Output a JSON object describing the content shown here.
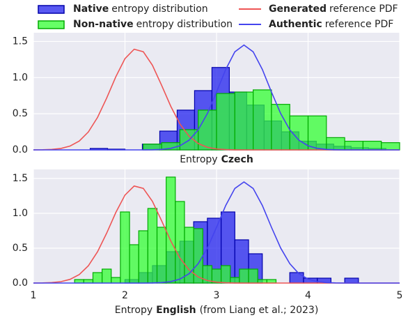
{
  "chart_data": [
    {
      "type": "histogram",
      "legend": [
        {
          "kind": "patch",
          "name": "Native",
          "desc": "entropy distribution",
          "color": "#2222ee",
          "edge": "#0000aa"
        },
        {
          "kind": "line",
          "name": "Generated",
          "desc": "reference PDF",
          "color": "#ee5555"
        },
        {
          "kind": "patch",
          "name": "Non-native",
          "desc": "entropy distribution",
          "color": "#33ff33",
          "edge": "#00aa00"
        },
        {
          "kind": "line",
          "name": "Authentic",
          "desc": "reference PDF",
          "color": "#4444ee"
        }
      ],
      "xlabel": {
        "text": "Entropy",
        "bold": "Czech"
      },
      "xlim": [
        1,
        5
      ],
      "ylim": [
        0,
        1.62
      ],
      "xticks": [
        1,
        2,
        3,
        4,
        5
      ],
      "show_xtick_labels": false,
      "yticks": [
        {
          "value": 0,
          "label": "0.0"
        },
        0.5,
        {
          "value": 1,
          "label": "1.0"
        },
        1.5
      ],
      "grid": true,
      "histograms": [
        {
          "color": "#2222ee",
          "edge": "#0000aa",
          "bins": [
            1.62,
            1.81,
            2.0,
            2.19,
            2.38,
            2.57,
            2.76,
            2.95,
            3.14,
            3.33,
            3.52,
            3.71,
            3.9,
            4.09,
            4.28,
            4.47,
            4.66,
            4.85
          ],
          "counts": [
            0.02,
            0.01,
            0.0,
            0.08,
            0.26,
            0.55,
            0.82,
            1.14,
            0.8,
            0.62,
            0.4,
            0.25,
            0.12,
            0.08,
            0.05,
            0.03,
            0.02
          ]
        },
        {
          "color": "#33ff33",
          "edge": "#00aa00",
          "bins": [
            2.2,
            2.4,
            2.6,
            2.8,
            3.0,
            3.2,
            3.4,
            3.6,
            3.8,
            4.0,
            4.2,
            4.4,
            4.6,
            4.8,
            5.0
          ],
          "counts": [
            0.08,
            0.1,
            0.28,
            0.55,
            0.78,
            0.8,
            0.83,
            0.63,
            0.47,
            0.47,
            0.17,
            0.12,
            0.12,
            0.1
          ]
        }
      ],
      "x": [
        1.0,
        1.1,
        1.2,
        1.3,
        1.4,
        1.5,
        1.6,
        1.7,
        1.8,
        1.9,
        2.0,
        2.1,
        2.2,
        2.3,
        2.4,
        2.5,
        2.6,
        2.7,
        2.8,
        2.9,
        3.0,
        3.1,
        3.2,
        3.3,
        3.4,
        3.5,
        3.6,
        3.7,
        3.8,
        3.9,
        4.0,
        4.1,
        4.2,
        4.3,
        4.4,
        4.5,
        4.6,
        4.7,
        4.8,
        4.9,
        5.0
      ],
      "series": [
        {
          "color": "#ee5555",
          "values": [
            0.001,
            0.002,
            0.007,
            0.02,
            0.053,
            0.122,
            0.248,
            0.449,
            0.716,
            1.011,
            1.262,
            1.392,
            1.358,
            1.172,
            0.894,
            0.603,
            0.359,
            0.189,
            0.088,
            0.036,
            0.013,
            0.004,
            0.001,
            0,
            0,
            0,
            0,
            0,
            0,
            0,
            0,
            0,
            0,
            0,
            0,
            0,
            0,
            0,
            0,
            0,
            0
          ]
        },
        {
          "color": "#4444ee",
          "values": [
            0,
            0,
            0,
            0,
            0,
            0,
            0,
            0,
            0,
            0,
            0,
            0,
            0,
            0.002,
            0.007,
            0.021,
            0.057,
            0.134,
            0.278,
            0.503,
            0.8,
            1.113,
            1.357,
            1.45,
            1.357,
            1.113,
            0.8,
            0.503,
            0.278,
            0.134,
            0.057,
            0.021,
            0.007,
            0.002,
            0,
            0,
            0,
            0,
            0,
            0,
            0
          ]
        }
      ]
    },
    {
      "type": "histogram",
      "xlabel": {
        "text": "Entropy",
        "bold": "English",
        "rest": "(from Liang et al.; 2023)"
      },
      "xlim": [
        1,
        5
      ],
      "ylim": [
        0,
        1.63
      ],
      "xticks": [
        1,
        2,
        3,
        4,
        5
      ],
      "show_xtick_labels": true,
      "yticks": [
        {
          "value": 0,
          "label": "0.0"
        },
        0.5,
        {
          "value": 1,
          "label": "1.0"
        },
        1.5
      ],
      "grid": true,
      "histograms": [
        {
          "color": "#2222ee",
          "edge": "#0000aa",
          "bins": [
            2.0,
            2.15,
            2.3,
            2.45,
            2.6,
            2.75,
            2.9,
            3.05,
            3.2,
            3.35,
            3.5,
            3.65,
            3.8,
            3.95,
            4.1,
            4.25,
            4.4,
            4.55,
            4.7
          ],
          "counts": [
            0.05,
            0.15,
            0.25,
            0.45,
            0.6,
            0.88,
            0.93,
            1.02,
            0.62,
            0.42,
            0.0,
            0.0,
            0.15,
            0.07,
            0.07,
            0.0,
            0.07,
            0.0
          ]
        },
        {
          "color": "#33ff33",
          "edge": "#00aa00",
          "bins": [
            1.45,
            1.55,
            1.65,
            1.75,
            1.85,
            1.95,
            2.05,
            2.15,
            2.25,
            2.35,
            2.45,
            2.55,
            2.65,
            2.75,
            2.85,
            2.95,
            3.05,
            3.15,
            3.25,
            3.35,
            3.45,
            3.55,
            3.65
          ],
          "counts": [
            0.05,
            0.05,
            0.15,
            0.2,
            0.08,
            1.02,
            0.55,
            0.75,
            1.07,
            0.8,
            1.52,
            1.17,
            0.8,
            0.78,
            0.25,
            0.2,
            0.25,
            0.08,
            0.2,
            0.2,
            0.05,
            0.05
          ]
        }
      ],
      "x": [
        1.0,
        1.1,
        1.2,
        1.3,
        1.4,
        1.5,
        1.6,
        1.7,
        1.8,
        1.9,
        2.0,
        2.1,
        2.2,
        2.3,
        2.4,
        2.5,
        2.6,
        2.7,
        2.8,
        2.9,
        3.0,
        3.1,
        3.2,
        3.3,
        3.4,
        3.5,
        3.6,
        3.7,
        3.8,
        3.9,
        4.0,
        4.1,
        4.2,
        4.3,
        4.4,
        4.5,
        4.6,
        4.7,
        4.8,
        4.9,
        5.0
      ],
      "series": [
        {
          "color": "#ee5555",
          "values": [
            0.001,
            0.002,
            0.007,
            0.02,
            0.053,
            0.122,
            0.248,
            0.449,
            0.716,
            1.011,
            1.262,
            1.392,
            1.358,
            1.172,
            0.894,
            0.603,
            0.359,
            0.189,
            0.088,
            0.036,
            0.013,
            0.004,
            0.001,
            0,
            0,
            0,
            0,
            0,
            0,
            0,
            0,
            0,
            0,
            0,
            0,
            0,
            0,
            0,
            0,
            0,
            0
          ]
        },
        {
          "color": "#4444ee",
          "values": [
            0,
            0,
            0,
            0,
            0,
            0,
            0,
            0,
            0,
            0,
            0,
            0,
            0,
            0.002,
            0.007,
            0.021,
            0.057,
            0.134,
            0.278,
            0.503,
            0.8,
            1.113,
            1.357,
            1.45,
            1.357,
            1.113,
            0.8,
            0.503,
            0.278,
            0.134,
            0.057,
            0.021,
            0.007,
            0.002,
            0,
            0,
            0,
            0,
            0,
            0,
            0
          ]
        }
      ]
    }
  ]
}
